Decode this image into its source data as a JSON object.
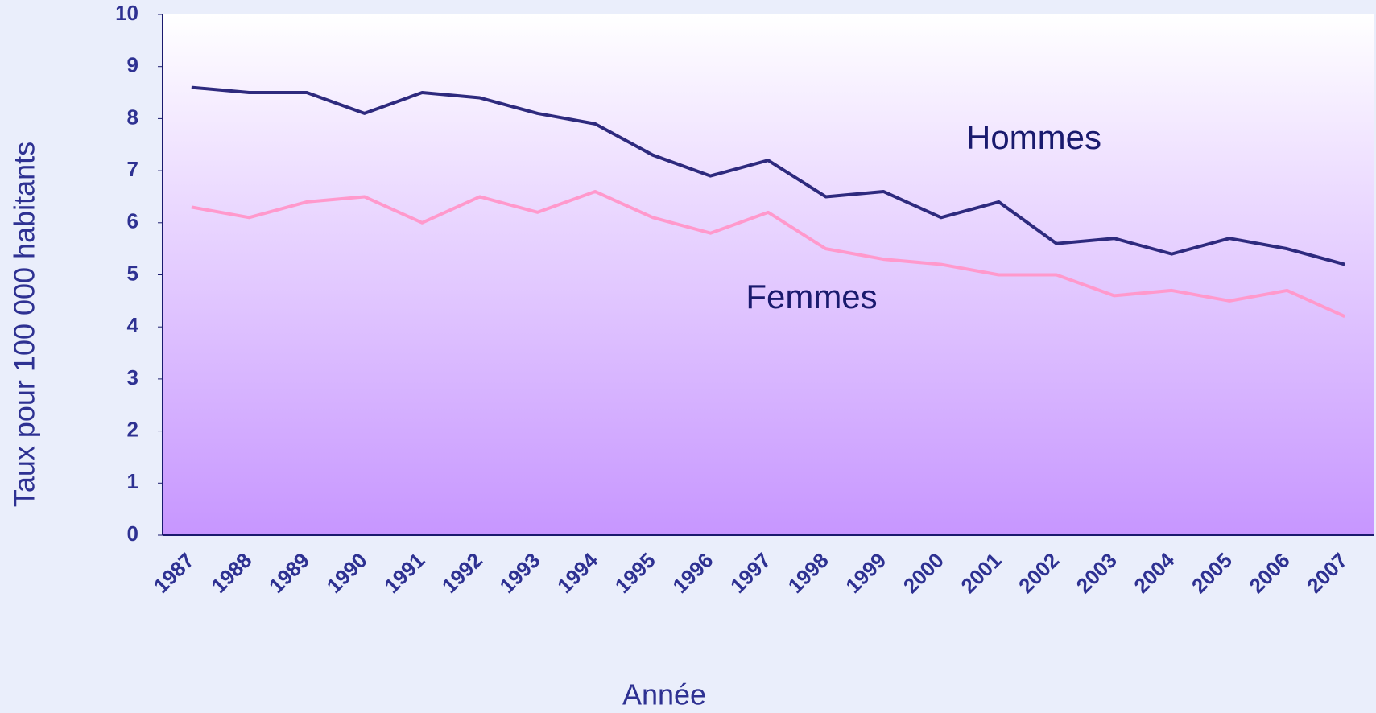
{
  "chart_data": {
    "type": "line",
    "categories": [
      "1987",
      "1988",
      "1989",
      "1990",
      "1991",
      "1992",
      "1993",
      "1994",
      "1995",
      "1996",
      "1997",
      "1998",
      "1999",
      "2000",
      "2001",
      "2002",
      "2003",
      "2004",
      "2005",
      "2006",
      "2007"
    ],
    "series": [
      {
        "name": "Hommes",
        "color": "#2e2a7e",
        "values": [
          8.6,
          8.5,
          8.5,
          8.1,
          8.5,
          8.4,
          8.1,
          7.9,
          7.3,
          6.9,
          7.2,
          6.5,
          6.6,
          6.1,
          6.4,
          5.6,
          5.7,
          5.4,
          5.7,
          5.5,
          5.2
        ]
      },
      {
        "name": "Femmes",
        "color": "#ff99cc",
        "values": [
          6.3,
          6.1,
          6.4,
          6.5,
          6.0,
          6.5,
          6.2,
          6.6,
          6.1,
          5.8,
          6.2,
          5.5,
          5.3,
          5.2,
          5.0,
          5.0,
          4.6,
          4.7,
          4.5,
          4.7,
          4.2
        ]
      }
    ],
    "ylim": [
      0,
      10
    ],
    "yticks": [
      0,
      1,
      2,
      3,
      4,
      5,
      6,
      7,
      8,
      9,
      10
    ],
    "x_label": "Année",
    "y_label": "Taux pour 100 000 habitants"
  }
}
